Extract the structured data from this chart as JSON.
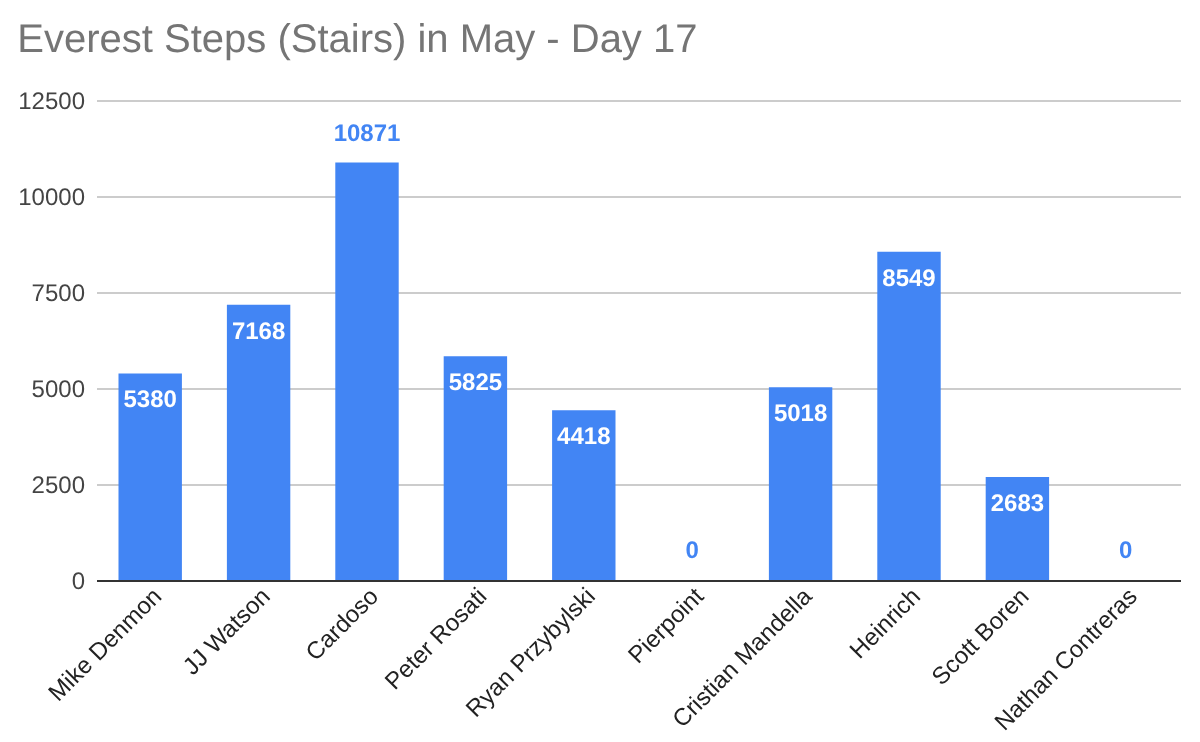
{
  "chart_data": {
    "type": "bar",
    "title": "Everest Steps (Stairs) in May - Day 17",
    "categories": [
      "Mike Denmon",
      "JJ Watson",
      "Cardoso",
      "Peter Rosati",
      "Ryan Przybylski",
      "Pierpoint",
      "Cristian Mandella",
      "Heinrich",
      "Scott Boren",
      "Nathan Contreras"
    ],
    "values": [
      5380,
      7168,
      10871,
      5825,
      4418,
      0,
      5018,
      8549,
      2683,
      0
    ],
    "color": "#4285f4",
    "ylim": [
      0,
      12500
    ],
    "yticks": [
      0,
      2500,
      5000,
      7500,
      10000,
      12500
    ],
    "grid": "y",
    "data_labels": true
  }
}
